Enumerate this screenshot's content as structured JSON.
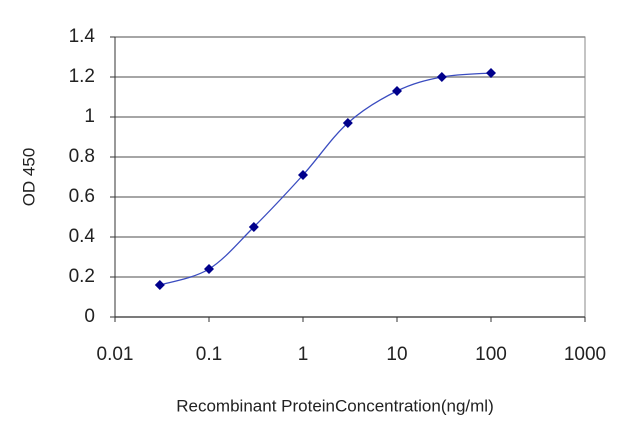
{
  "chart_data": {
    "type": "line",
    "xlabel": "Recombinant ProteinConcentration(ng/ml)",
    "ylabel": "OD 450",
    "x": [
      0.03,
      0.1,
      0.3,
      1,
      3,
      10,
      30,
      100
    ],
    "series": [
      {
        "color": "#00008b",
        "values": [
          0.16,
          0.24,
          0.45,
          0.71,
          0.97,
          1.13,
          1.2,
          1.22
        ]
      }
    ],
    "xscale": "log",
    "xlim": [
      0.01,
      1000
    ],
    "xticks": [
      0.01,
      0.1,
      1,
      10,
      100,
      1000
    ],
    "ylim": [
      0,
      1.4
    ],
    "yticks": [
      0,
      0.2,
      0.4,
      0.6,
      0.8,
      1,
      1.2,
      1.4
    ],
    "grid": true
  }
}
